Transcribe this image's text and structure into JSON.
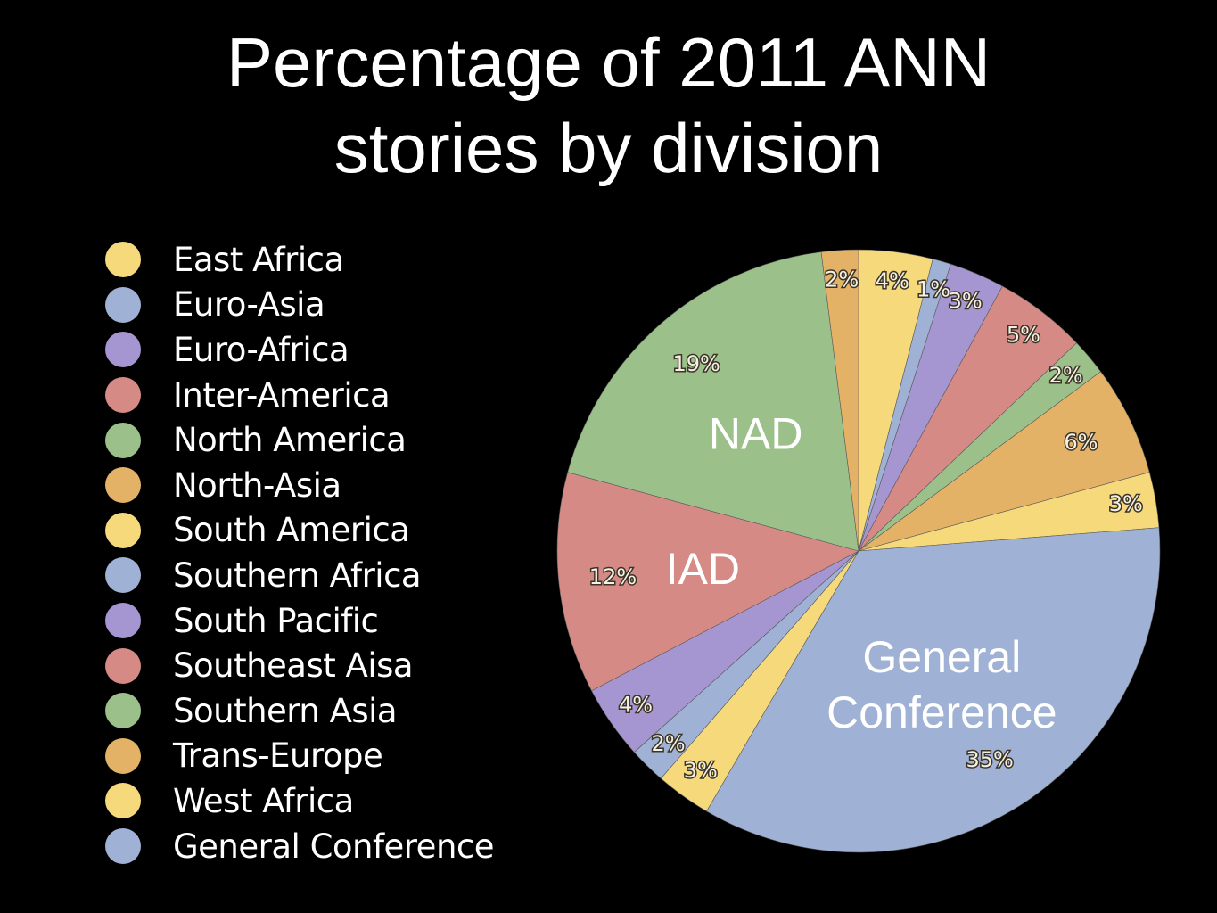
{
  "chart_data": {
    "type": "pie",
    "title_lines": [
      "Percentage of 2011 ANN",
      "stories  by division"
    ],
    "colors": {
      "yellow": "#f5d97a",
      "blue": "#9fb1d4",
      "purple": "#a595d0",
      "red": "#d68a86",
      "green": "#9cc08a",
      "orange": "#e3b266"
    },
    "legend": [
      {
        "label": "East Africa",
        "color": "yellow"
      },
      {
        "label": "Euro-Asia",
        "color": "blue"
      },
      {
        "label": "Euro-Africa",
        "color": "purple"
      },
      {
        "label": "Inter-America",
        "color": "red"
      },
      {
        "label": "North America",
        "color": "green"
      },
      {
        "label": "North-Asia",
        "color": "orange"
      },
      {
        "label": "South America",
        "color": "yellow"
      },
      {
        "label": "Southern Africa",
        "color": "blue"
      },
      {
        "label": "South Pacific",
        "color": "purple"
      },
      {
        "label": "Southeast Aisa",
        "color": "red"
      },
      {
        "label": "Southern Asia",
        "color": "green"
      },
      {
        "label": "Trans-Europe",
        "color": "orange"
      },
      {
        "label": "West Africa",
        "color": "yellow"
      },
      {
        "label": "General Conference",
        "color": "blue"
      }
    ],
    "slices": [
      {
        "value": 4,
        "label": "4%",
        "color": "yellow"
      },
      {
        "value": 1,
        "label": "1%",
        "color": "blue"
      },
      {
        "value": 3,
        "label": "3%",
        "color": "purple"
      },
      {
        "value": 5,
        "label": "5%",
        "color": "red"
      },
      {
        "value": 2,
        "label": "2%",
        "color": "green"
      },
      {
        "value": 6,
        "label": "6%",
        "color": "orange"
      },
      {
        "value": 3,
        "label": "3%",
        "color": "yellow"
      },
      {
        "value": 35,
        "label": "35%",
        "color": "blue"
      },
      {
        "value": 3,
        "label": "3%",
        "color": "yellow"
      },
      {
        "value": 2,
        "label": "2%",
        "color": "blue"
      },
      {
        "value": 4,
        "label": "4%",
        "color": "purple"
      },
      {
        "value": 12,
        "label": "12%",
        "color": "red"
      },
      {
        "value": 19,
        "label": "19%",
        "color": "green"
      },
      {
        "value": 2,
        "label": "2%",
        "color": "orange"
      }
    ],
    "annotations": [
      {
        "slice": 12,
        "lines": [
          "NAD"
        ]
      },
      {
        "slice": 11,
        "lines": [
          "IAD"
        ]
      },
      {
        "slice": 7,
        "lines": [
          "General",
          "Conference"
        ]
      }
    ]
  }
}
